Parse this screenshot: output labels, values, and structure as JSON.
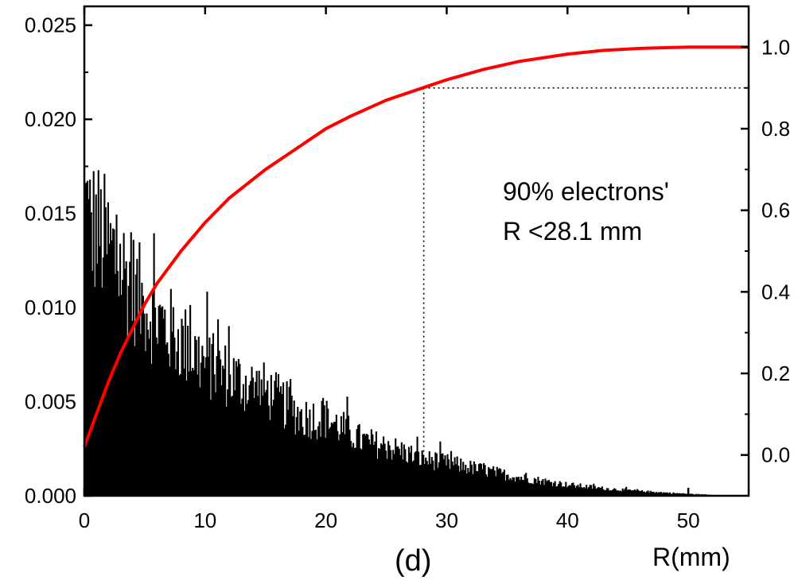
{
  "chart_data": {
    "type": "bar",
    "panel_label": "(d)",
    "xlabel": "R(mm)",
    "ylabel_left": "",
    "ylabel_right": "",
    "xlim": [
      0,
      55
    ],
    "ylim_left": [
      0,
      0.026
    ],
    "ylim_right": [
      -0.1,
      1.1
    ],
    "x_ticks": [
      0,
      10,
      20,
      30,
      40,
      50
    ],
    "x_tick_labels": [
      "0",
      "10",
      "20",
      "30",
      "40",
      "50"
    ],
    "y_left_ticks": [
      0.0,
      0.005,
      0.01,
      0.015,
      0.02,
      0.025
    ],
    "y_left_tick_labels": [
      "0.000",
      "0.005",
      "0.010",
      "0.015",
      "0.020",
      "0.025"
    ],
    "y_right_ticks": [
      0.0,
      0.2,
      0.4,
      0.6,
      0.8,
      1.0
    ],
    "y_right_tick_labels": [
      "0.0",
      "0.2",
      "0.4",
      "0.6",
      "0.8",
      "1.0"
    ],
    "annotation_lines": [
      "90% electrons'",
      "R <28.1 mm"
    ],
    "marker": {
      "x": 28.1,
      "y_right": 0.9
    },
    "histogram": {
      "color": "#000000",
      "bin_width": 0.1,
      "envelope": [
        [
          0,
          0.015
        ],
        [
          1,
          0.0145
        ],
        [
          2,
          0.0135
        ],
        [
          3,
          0.0125
        ],
        [
          5,
          0.0103
        ],
        [
          7,
          0.009
        ],
        [
          10,
          0.0072
        ],
        [
          13,
          0.0062
        ],
        [
          15,
          0.0057
        ],
        [
          18,
          0.0043
        ],
        [
          20,
          0.0042
        ],
        [
          23,
          0.003
        ],
        [
          26,
          0.0025
        ],
        [
          28,
          0.002
        ],
        [
          30,
          0.0018
        ],
        [
          33,
          0.0014
        ],
        [
          36,
          0.001
        ],
        [
          40,
          0.0006
        ],
        [
          43,
          0.0004
        ],
        [
          46,
          0.00025
        ],
        [
          50,
          0.0001
        ],
        [
          53,
          3e-05
        ],
        [
          55,
          0.0
        ]
      ]
    },
    "cumulative": {
      "color": "#ff0000",
      "points": [
        [
          0,
          0.02
        ],
        [
          1,
          0.1
        ],
        [
          2,
          0.18
        ],
        [
          3,
          0.25
        ],
        [
          4,
          0.31
        ],
        [
          5,
          0.37
        ],
        [
          6,
          0.42
        ],
        [
          8,
          0.5
        ],
        [
          10,
          0.57
        ],
        [
          12,
          0.63
        ],
        [
          15,
          0.7
        ],
        [
          18,
          0.76
        ],
        [
          20,
          0.8
        ],
        [
          22,
          0.83
        ],
        [
          25,
          0.87
        ],
        [
          28,
          0.9
        ],
        [
          30,
          0.92
        ],
        [
          33,
          0.945
        ],
        [
          36,
          0.965
        ],
        [
          40,
          0.983
        ],
        [
          43,
          0.992
        ],
        [
          46,
          0.997
        ],
        [
          50,
          1.0
        ],
        [
          55,
          1.0
        ]
      ]
    }
  }
}
